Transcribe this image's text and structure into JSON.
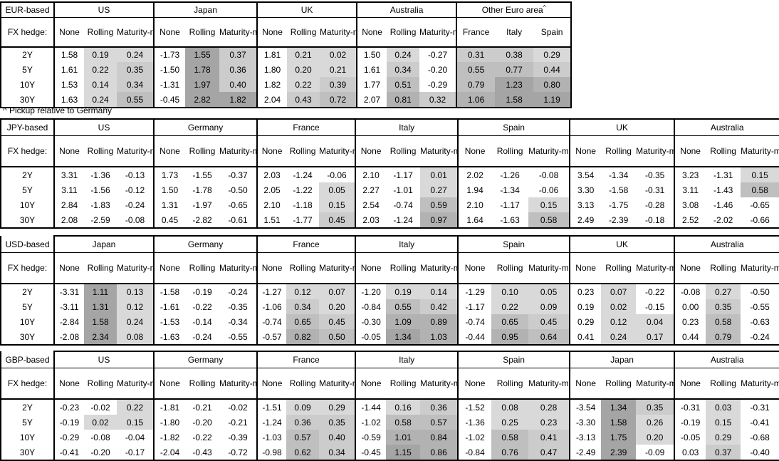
{
  "footnote": "^ Pickup relative to Germany",
  "fx_hedge_label": "FX hedge:",
  "tenors": [
    "2Y",
    "5Y",
    "10Y",
    "30Y"
  ],
  "hedge_columns": [
    "None",
    "Rolling",
    "Maturity-matched"
  ],
  "heatmap": {
    "non_positive_color": "#ffffff",
    "positive_shades": [
      {
        "upto": 0.3,
        "color": "#d9d9d9"
      },
      {
        "upto": 0.5,
        "color": "#cccccc"
      },
      {
        "upto": 0.8,
        "color": "#bfbfbf"
      },
      {
        "upto": 1.1,
        "color": "#b2b2b2"
      },
      {
        "upto": 9999,
        "color": "#a5a5a5"
      }
    ]
  },
  "tables": [
    {
      "base": "EUR-based",
      "groups": [
        {
          "name": "US",
          "rows": [
            [
              "1.58",
              "0.19",
              "0.24"
            ],
            [
              "1.61",
              "0.22",
              "0.35"
            ],
            [
              "1.53",
              "0.14",
              "0.34"
            ],
            [
              "1.63",
              "0.24",
              "0.55"
            ]
          ]
        },
        {
          "name": "Japan",
          "rows": [
            [
              "-1.73",
              "1.55",
              "0.37"
            ],
            [
              "-1.50",
              "1.78",
              "0.36"
            ],
            [
              "-1.31",
              "1.97",
              "0.40"
            ],
            [
              "-0.45",
              "2.82",
              "1.82"
            ]
          ]
        },
        {
          "name": "UK",
          "rows": [
            [
              "1.81",
              "0.21",
              "0.02"
            ],
            [
              "1.80",
              "0.20",
              "0.21"
            ],
            [
              "1.82",
              "0.22",
              "0.39"
            ],
            [
              "2.04",
              "0.43",
              "0.72"
            ]
          ]
        },
        {
          "name": "Australia",
          "rows": [
            [
              "1.50",
              "0.24",
              "-0.27"
            ],
            [
              "1.61",
              "0.34",
              "-0.20"
            ],
            [
              "1.77",
              "0.51",
              "-0.29"
            ],
            [
              "2.07",
              "0.81",
              "0.32"
            ]
          ]
        },
        {
          "name": "Other Euro area",
          "footnote_marker": "^",
          "columns": [
            "France",
            "Italy",
            "Spain"
          ],
          "shaded_columns": [
            0,
            1,
            2
          ],
          "rows": [
            [
              "0.31",
              "0.38",
              "0.29"
            ],
            [
              "0.55",
              "0.77",
              "0.44"
            ],
            [
              "0.79",
              "1.23",
              "0.80"
            ],
            [
              "1.06",
              "1.58",
              "1.19"
            ]
          ]
        }
      ]
    },
    {
      "base": "JPY-based",
      "groups": [
        {
          "name": "US",
          "rows": [
            [
              "3.31",
              "-1.36",
              "-0.13"
            ],
            [
              "3.11",
              "-1.56",
              "-0.12"
            ],
            [
              "2.84",
              "-1.83",
              "-0.24"
            ],
            [
              "2.08",
              "-2.59",
              "-0.08"
            ]
          ]
        },
        {
          "name": "Germany",
          "rows": [
            [
              "1.73",
              "-1.55",
              "-0.37"
            ],
            [
              "1.50",
              "-1.78",
              "-0.50"
            ],
            [
              "1.31",
              "-1.97",
              "-0.65"
            ],
            [
              "0.45",
              "-2.82",
              "-0.61"
            ]
          ]
        },
        {
          "name": "France",
          "rows": [
            [
              "2.03",
              "-1.24",
              "-0.06"
            ],
            [
              "2.05",
              "-1.22",
              "0.05"
            ],
            [
              "2.10",
              "-1.18",
              "0.15"
            ],
            [
              "1.51",
              "-1.77",
              "0.45"
            ]
          ]
        },
        {
          "name": "Italy",
          "rows": [
            [
              "2.10",
              "-1.17",
              "0.01"
            ],
            [
              "2.27",
              "-1.01",
              "0.27"
            ],
            [
              "2.54",
              "-0.74",
              "0.59"
            ],
            [
              "2.03",
              "-1.24",
              "0.97"
            ]
          ]
        },
        {
          "name": "Spain",
          "rows": [
            [
              "2.02",
              "-1.26",
              "-0.08"
            ],
            [
              "1.94",
              "-1.34",
              "-0.06"
            ],
            [
              "2.10",
              "-1.17",
              "0.15"
            ],
            [
              "1.64",
              "-1.63",
              "0.58"
            ]
          ]
        },
        {
          "name": "UK",
          "rows": [
            [
              "3.54",
              "-1.34",
              "-0.35"
            ],
            [
              "3.30",
              "-1.58",
              "-0.31"
            ],
            [
              "3.13",
              "-1.75",
              "-0.28"
            ],
            [
              "2.49",
              "-2.39",
              "-0.18"
            ]
          ]
        },
        {
          "name": "Australia",
          "rows": [
            [
              "3.23",
              "-1.31",
              "0.15"
            ],
            [
              "3.11",
              "-1.43",
              "0.58"
            ],
            [
              "3.08",
              "-1.46",
              "-0.65"
            ],
            [
              "2.52",
              "-2.02",
              "-0.66"
            ]
          ]
        }
      ]
    },
    {
      "base": "USD-based",
      "groups": [
        {
          "name": "Japan",
          "rows": [
            [
              "-3.31",
              "1.11",
              "0.13"
            ],
            [
              "-3.11",
              "1.31",
              "0.12"
            ],
            [
              "-2.84",
              "1.58",
              "0.24"
            ],
            [
              "-2.08",
              "2.34",
              "0.08"
            ]
          ]
        },
        {
          "name": "Germany",
          "rows": [
            [
              "-1.58",
              "-0.19",
              "-0.24"
            ],
            [
              "-1.61",
              "-0.22",
              "-0.35"
            ],
            [
              "-1.53",
              "-0.14",
              "-0.34"
            ],
            [
              "-1.63",
              "-0.24",
              "-0.55"
            ]
          ]
        },
        {
          "name": "France",
          "rows": [
            [
              "-1.27",
              "0.12",
              "0.07"
            ],
            [
              "-1.06",
              "0.34",
              "0.20"
            ],
            [
              "-0.74",
              "0.65",
              "0.45"
            ],
            [
              "-0.57",
              "0.82",
              "0.50"
            ]
          ]
        },
        {
          "name": "Italy",
          "rows": [
            [
              "-1.20",
              "0.19",
              "0.14"
            ],
            [
              "-0.84",
              "0.55",
              "0.42"
            ],
            [
              "-0.30",
              "1.09",
              "0.89"
            ],
            [
              "-0.05",
              "1.34",
              "1.03"
            ]
          ]
        },
        {
          "name": "Spain",
          "rows": [
            [
              "-1.29",
              "0.10",
              "0.05"
            ],
            [
              "-1.17",
              "0.22",
              "0.09"
            ],
            [
              "-0.74",
              "0.65",
              "0.45"
            ],
            [
              "-0.44",
              "0.95",
              "0.64"
            ]
          ]
        },
        {
          "name": "UK",
          "rows": [
            [
              "0.23",
              "0.07",
              "-0.22"
            ],
            [
              "0.19",
              "0.02",
              "-0.15"
            ],
            [
              "0.29",
              "0.12",
              "0.04"
            ],
            [
              "0.41",
              "0.24",
              "0.17"
            ]
          ]
        },
        {
          "name": "Australia",
          "rows": [
            [
              "-0.08",
              "0.27",
              "-0.50"
            ],
            [
              "0.00",
              "0.35",
              "-0.55"
            ],
            [
              "0.23",
              "0.58",
              "-0.63"
            ],
            [
              "0.44",
              "0.79",
              "-0.24"
            ]
          ]
        }
      ]
    },
    {
      "base": "GBP-based",
      "groups": [
        {
          "name": "US",
          "rows": [
            [
              "-0.23",
              "-0.02",
              "0.22"
            ],
            [
              "-0.19",
              "0.02",
              "0.15"
            ],
            [
              "-0.29",
              "-0.08",
              "-0.04"
            ],
            [
              "-0.41",
              "-0.20",
              "-0.17"
            ]
          ]
        },
        {
          "name": "Germany",
          "rows": [
            [
              "-1.81",
              "-0.21",
              "-0.02"
            ],
            [
              "-1.80",
              "-0.20",
              "-0.21"
            ],
            [
              "-1.82",
              "-0.22",
              "-0.39"
            ],
            [
              "-2.04",
              "-0.43",
              "-0.72"
            ]
          ]
        },
        {
          "name": "France",
          "rows": [
            [
              "-1.51",
              "0.09",
              "0.29"
            ],
            [
              "-1.24",
              "0.36",
              "0.35"
            ],
            [
              "-1.03",
              "0.57",
              "0.40"
            ],
            [
              "-0.98",
              "0.62",
              "0.34"
            ]
          ]
        },
        {
          "name": "Italy",
          "rows": [
            [
              "-1.44",
              "0.16",
              "0.36"
            ],
            [
              "-1.02",
              "0.58",
              "0.57"
            ],
            [
              "-0.59",
              "1.01",
              "0.84"
            ],
            [
              "-0.45",
              "1.15",
              "0.86"
            ]
          ]
        },
        {
          "name": "Spain",
          "rows": [
            [
              "-1.52",
              "0.08",
              "0.28"
            ],
            [
              "-1.36",
              "0.25",
              "0.23"
            ],
            [
              "-1.02",
              "0.58",
              "0.41"
            ],
            [
              "-0.84",
              "0.76",
              "0.47"
            ]
          ]
        },
        {
          "name": "Japan",
          "rows": [
            [
              "-3.54",
              "1.34",
              "0.35"
            ],
            [
              "-3.30",
              "1.58",
              "0.26"
            ],
            [
              "-3.13",
              "1.75",
              "0.20"
            ],
            [
              "-2.49",
              "2.39",
              "-0.09"
            ]
          ]
        },
        {
          "name": "Australia",
          "rows": [
            [
              "-0.31",
              "0.03",
              "-0.31"
            ],
            [
              "-0.19",
              "0.15",
              "-0.41"
            ],
            [
              "-0.05",
              "0.29",
              "-0.68"
            ],
            [
              "0.03",
              "0.37",
              "-0.40"
            ]
          ]
        }
      ]
    }
  ]
}
